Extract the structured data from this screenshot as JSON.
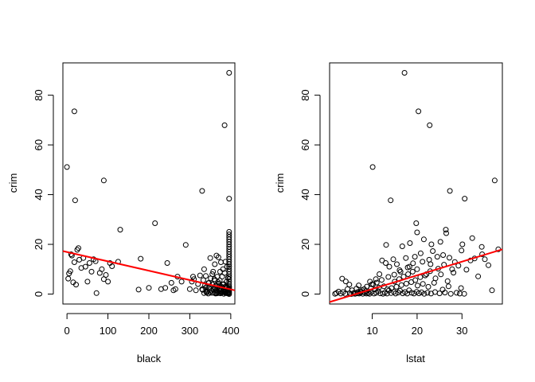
{
  "chart_data": [
    {
      "type": "scatter",
      "title": "",
      "xlabel": "black",
      "ylabel": "crim",
      "xlim": [
        -10,
        410
      ],
      "ylim": [
        -4,
        93
      ],
      "xticks": [
        0,
        100,
        200,
        300,
        400
      ],
      "yticks": [
        0,
        20,
        40,
        60,
        80
      ],
      "xtick_labels": [
        "0",
        "100",
        "200",
        "300",
        "400"
      ],
      "ytick_labels": [
        "0",
        "20",
        "40",
        "60",
        "80"
      ],
      "grid": false,
      "fit_line": {
        "color": "#ff0000",
        "x": [
          -10,
          410
        ],
        "y": [
          17.3,
          1.5
        ]
      },
      "points": [
        [
          0,
          51.1
        ],
        [
          18,
          73.5
        ],
        [
          20,
          37.7
        ],
        [
          90,
          45.7
        ],
        [
          130,
          25.9
        ],
        [
          215,
          28.5
        ],
        [
          290,
          19.8
        ],
        [
          330,
          41.5
        ],
        [
          385,
          67.9
        ],
        [
          396,
          38.4
        ],
        [
          396,
          89
        ],
        [
          3,
          6.2
        ],
        [
          5,
          8.3
        ],
        [
          8,
          9.2
        ],
        [
          10,
          16
        ],
        [
          12,
          15.5
        ],
        [
          15,
          4.7
        ],
        [
          18,
          12.8
        ],
        [
          22,
          3.8
        ],
        [
          25,
          17.8
        ],
        [
          28,
          18.5
        ],
        [
          30,
          13.8
        ],
        [
          35,
          10.5
        ],
        [
          40,
          14.5
        ],
        [
          45,
          11
        ],
        [
          50,
          5
        ],
        [
          55,
          12.5
        ],
        [
          60,
          9
        ],
        [
          65,
          14
        ],
        [
          70,
          13.2
        ],
        [
          72,
          0.4
        ],
        [
          80,
          8.5
        ],
        [
          85,
          10
        ],
        [
          90,
          6
        ],
        [
          95,
          7.7
        ],
        [
          100,
          5
        ],
        [
          105,
          12.5
        ],
        [
          110,
          11.2
        ],
        [
          125,
          13
        ],
        [
          175,
          1.8
        ],
        [
          180,
          14.2
        ],
        [
          200,
          2.5
        ],
        [
          230,
          2
        ],
        [
          240,
          2.5
        ],
        [
          245,
          12.5
        ],
        [
          255,
          4.5
        ],
        [
          260,
          1.5
        ],
        [
          265,
          2
        ],
        [
          270,
          7
        ],
        [
          280,
          5
        ],
        [
          300,
          2
        ],
        [
          305,
          5
        ],
        [
          308,
          7
        ],
        [
          310,
          6
        ],
        [
          315,
          1.5
        ],
        [
          320,
          4
        ],
        [
          325,
          7.5
        ],
        [
          330,
          2
        ],
        [
          335,
          10
        ],
        [
          338,
          2.5
        ],
        [
          340,
          1
        ],
        [
          342,
          3
        ],
        [
          345,
          0.2
        ],
        [
          347,
          4.5
        ],
        [
          350,
          14.5
        ],
        [
          352,
          0.5
        ],
        [
          355,
          8
        ],
        [
          357,
          9
        ],
        [
          358,
          1.8
        ],
        [
          360,
          6
        ],
        [
          361,
          12
        ],
        [
          362,
          0.5
        ],
        [
          363,
          2.4
        ],
        [
          364,
          3.5
        ],
        [
          365,
          15.5
        ],
        [
          366,
          0.3
        ],
        [
          367,
          7
        ],
        [
          368,
          1
        ],
        [
          369,
          4.8
        ],
        [
          370,
          14.8
        ],
        [
          371,
          0.4
        ],
        [
          372,
          2
        ],
        [
          373,
          5.5
        ],
        [
          374,
          9
        ],
        [
          375,
          1.2
        ],
        [
          376,
          12.8
        ],
        [
          377,
          3
        ],
        [
          378,
          0.6
        ],
        [
          379,
          7
        ],
        [
          380,
          2.5
        ],
        [
          381,
          10
        ],
        [
          382,
          1.5
        ],
        [
          383,
          4
        ],
        [
          384,
          0.8
        ],
        [
          385,
          8.5
        ],
        [
          386,
          1
        ],
        [
          387,
          13
        ],
        [
          388,
          3
        ],
        [
          389,
          0.5
        ],
        [
          390,
          5
        ],
        [
          391,
          11
        ],
        [
          392,
          0.3
        ],
        [
          393,
          6.5
        ],
        [
          394,
          2
        ],
        [
          395,
          1
        ],
        [
          396,
          0
        ],
        [
          396,
          0.5
        ],
        [
          396,
          1
        ],
        [
          396,
          1.5
        ],
        [
          396,
          2
        ],
        [
          396,
          2.5
        ],
        [
          396,
          3
        ],
        [
          396,
          4
        ],
        [
          396,
          5
        ],
        [
          396,
          6
        ],
        [
          396,
          7
        ],
        [
          396,
          8
        ],
        [
          396,
          9
        ],
        [
          396,
          10
        ],
        [
          396,
          11
        ],
        [
          396,
          12
        ],
        [
          396,
          13
        ],
        [
          396,
          14
        ],
        [
          396,
          15
        ],
        [
          396,
          16
        ],
        [
          396,
          17
        ],
        [
          396,
          18
        ],
        [
          396,
          19
        ],
        [
          396,
          20
        ],
        [
          396,
          21
        ],
        [
          396,
          22
        ],
        [
          396,
          23
        ],
        [
          396,
          24
        ],
        [
          396,
          25
        ],
        [
          394,
          0.2
        ],
        [
          393,
          0.8
        ],
        [
          392,
          1.6
        ],
        [
          391,
          2.4
        ],
        [
          389,
          3.2
        ],
        [
          388,
          1.2
        ],
        [
          387,
          0.4
        ],
        [
          385,
          2.8
        ],
        [
          383,
          0.1
        ],
        [
          381,
          3.8
        ],
        [
          379,
          0.9
        ],
        [
          377,
          1.9
        ],
        [
          375,
          0.3
        ],
        [
          373,
          2.2
        ],
        [
          371,
          4.2
        ],
        [
          369,
          0.7
        ],
        [
          367,
          3.3
        ],
        [
          365,
          1.6
        ],
        [
          363,
          0.2
        ],
        [
          361,
          5.4
        ],
        [
          359,
          2.7
        ],
        [
          357,
          0.5
        ],
        [
          355,
          3.9
        ],
        [
          353,
          1.3
        ],
        [
          351,
          6.3
        ],
        [
          349,
          0.9
        ],
        [
          347,
          2.1
        ],
        [
          345,
          4.4
        ],
        [
          343,
          1.1
        ],
        [
          341,
          0.6
        ],
        [
          339,
          7.3
        ],
        [
          337,
          3.5
        ],
        [
          335,
          0.4
        ],
        [
          333,
          5.6
        ],
        [
          331,
          1.7
        ]
      ]
    },
    {
      "type": "scatter",
      "title": "",
      "xlabel": "lstat",
      "ylabel": "crim",
      "xlim": [
        0.5,
        39
      ],
      "ylim": [
        -4,
        93
      ],
      "xticks": [
        10,
        20,
        30
      ],
      "yticks": [
        0,
        20,
        40,
        60,
        80
      ],
      "xtick_labels": [
        "10",
        "20",
        "30"
      ],
      "ytick_labels": [
        "0",
        "20",
        "40",
        "60",
        "80"
      ],
      "grid": false,
      "fit_line": {
        "color": "#ff0000",
        "x": [
          0.5,
          39
        ],
        "y": [
          -3.2,
          18
        ]
      },
      "points": [
        [
          17.2,
          89
        ],
        [
          20.3,
          73.5
        ],
        [
          22.8,
          67.9
        ],
        [
          10.1,
          51.1
        ],
        [
          14.1,
          37.7
        ],
        [
          27.3,
          41.5
        ],
        [
          30.6,
          38.4
        ],
        [
          37.3,
          45.7
        ],
        [
          26.4,
          25.9
        ],
        [
          19.8,
          28.5
        ],
        [
          23.2,
          20
        ],
        [
          34.4,
          19
        ],
        [
          38.1,
          18
        ],
        [
          20,
          24.8
        ],
        [
          21.5,
          22
        ],
        [
          18.4,
          20.5
        ],
        [
          16.7,
          19.2
        ],
        [
          13.1,
          19.8
        ],
        [
          25.2,
          21
        ],
        [
          29.9,
          17.5
        ],
        [
          32.3,
          22.5
        ],
        [
          26.5,
          24.5
        ],
        [
          30.1,
          20
        ],
        [
          34.5,
          16
        ],
        [
          35.1,
          14
        ],
        [
          31.9,
          13.5
        ],
        [
          27.8,
          10
        ],
        [
          24.5,
          15
        ],
        [
          23,
          12
        ],
        [
          22.1,
          8
        ],
        [
          21.2,
          13
        ],
        [
          19.5,
          15
        ],
        [
          18.3,
          11
        ],
        [
          17.5,
          14.5
        ],
        [
          16.3,
          9
        ],
        [
          15.5,
          12
        ],
        [
          14.7,
          14
        ],
        [
          13.8,
          11
        ],
        [
          13,
          12.5
        ],
        [
          12.2,
          13.5
        ],
        [
          11.6,
          8
        ],
        [
          10.8,
          6
        ],
        [
          10.2,
          4
        ],
        [
          9.5,
          5
        ],
        [
          8.8,
          3
        ],
        [
          8.2,
          2
        ],
        [
          7.5,
          1
        ],
        [
          7,
          3.5
        ],
        [
          6.5,
          2.2
        ],
        [
          6,
          0.5
        ],
        [
          5.5,
          1.5
        ],
        [
          5,
          0.3
        ],
        [
          4.5,
          2
        ],
        [
          4,
          0.1
        ],
        [
          3.5,
          0.8
        ],
        [
          3,
          0.2
        ],
        [
          2.5,
          1
        ],
        [
          2,
          0.4
        ],
        [
          1.7,
          0.1
        ],
        [
          3.3,
          6.2
        ],
        [
          4.1,
          5.1
        ],
        [
          4.9,
          3.8
        ],
        [
          5.3,
          0
        ],
        [
          5.8,
          0.2
        ],
        [
          6.2,
          0.1
        ],
        [
          6.7,
          0.3
        ],
        [
          7.1,
          0.2
        ],
        [
          7.4,
          0.5
        ],
        [
          7.9,
          0.1
        ],
        [
          8.3,
          0.6
        ],
        [
          8.7,
          0.2
        ],
        [
          9.1,
          0.4
        ],
        [
          9.4,
          0.1
        ],
        [
          9.8,
          0.8
        ],
        [
          10.4,
          0.2
        ],
        [
          10.9,
          0.5
        ],
        [
          11.3,
          1.2
        ],
        [
          11.8,
          0.3
        ],
        [
          12.4,
          0.1
        ],
        [
          12.8,
          0.6
        ],
        [
          13.3,
          0.2
        ],
        [
          13.7,
          1.4
        ],
        [
          14.2,
          0.4
        ],
        [
          14.8,
          0.9
        ],
        [
          15.2,
          0.2
        ],
        [
          15.8,
          0.6
        ],
        [
          16.2,
          1.3
        ],
        [
          16.8,
          0.3
        ],
        [
          17.3,
          0.8
        ],
        [
          17.8,
          0.2
        ],
        [
          18.2,
          1.5
        ],
        [
          18.8,
          0.5
        ],
        [
          19.3,
          0.2
        ],
        [
          19.9,
          0.9
        ],
        [
          20.4,
          0.3
        ],
        [
          21,
          0.7
        ],
        [
          21.6,
          0.1
        ],
        [
          22.3,
          0.5
        ],
        [
          23.1,
          0.2
        ],
        [
          24,
          0.8
        ],
        [
          25,
          0.3
        ],
        [
          26.2,
          0.6
        ],
        [
          27.5,
          0.1
        ],
        [
          28.8,
          0.5
        ],
        [
          29.5,
          0.2
        ],
        [
          30.5,
          0.1
        ],
        [
          15,
          5
        ],
        [
          16,
          6
        ],
        [
          17,
          7
        ],
        [
          18,
          8
        ],
        [
          19,
          9
        ],
        [
          20,
          10
        ],
        [
          17.6,
          4.2
        ],
        [
          16.5,
          3.6
        ],
        [
          15.4,
          2.9
        ],
        [
          14.3,
          2.4
        ],
        [
          13.4,
          1.9
        ],
        [
          12.6,
          3.1
        ],
        [
          11.5,
          2.6
        ],
        [
          10.6,
          1.8
        ],
        [
          9.7,
          2.3
        ],
        [
          8.6,
          1.2
        ],
        [
          7.7,
          1.6
        ],
        [
          6.8,
          0.9
        ],
        [
          18.7,
          4.8
        ],
        [
          19.6,
          5.6
        ],
        [
          20.7,
          6.8
        ],
        [
          21.8,
          7.5
        ],
        [
          22.9,
          9.2
        ],
        [
          24.1,
          6.3
        ],
        [
          25.3,
          7.9
        ],
        [
          26.8,
          5.2
        ],
        [
          28.1,
          8.6
        ],
        [
          29.2,
          11.4
        ],
        [
          31,
          9.8
        ],
        [
          32.8,
          14.3
        ],
        [
          33.6,
          7.1
        ],
        [
          35.9,
          11.6
        ],
        [
          36.7,
          1.5
        ],
        [
          29.8,
          2.4
        ],
        [
          27,
          3.1
        ],
        [
          25.7,
          1.8
        ],
        [
          23.8,
          4.5
        ],
        [
          22.5,
          2.9
        ],
        [
          21.3,
          4.1
        ],
        [
          20.1,
          3.4
        ],
        [
          24.7,
          10.2
        ],
        [
          26,
          11.8
        ],
        [
          28.4,
          12.9
        ],
        [
          27.2,
          14.6
        ],
        [
          19.1,
          12.4
        ],
        [
          17.9,
          10.7
        ],
        [
          16.1,
          9.6
        ],
        [
          14.9,
          7.8
        ],
        [
          13.6,
          6.9
        ],
        [
          12.1,
          5.7
        ],
        [
          11,
          4.6
        ],
        [
          9.9,
          3.9
        ],
        [
          23.5,
          17.3
        ],
        [
          25.8,
          15.7
        ],
        [
          22.7,
          13.8
        ],
        [
          20.8,
          16.4
        ]
      ]
    }
  ]
}
